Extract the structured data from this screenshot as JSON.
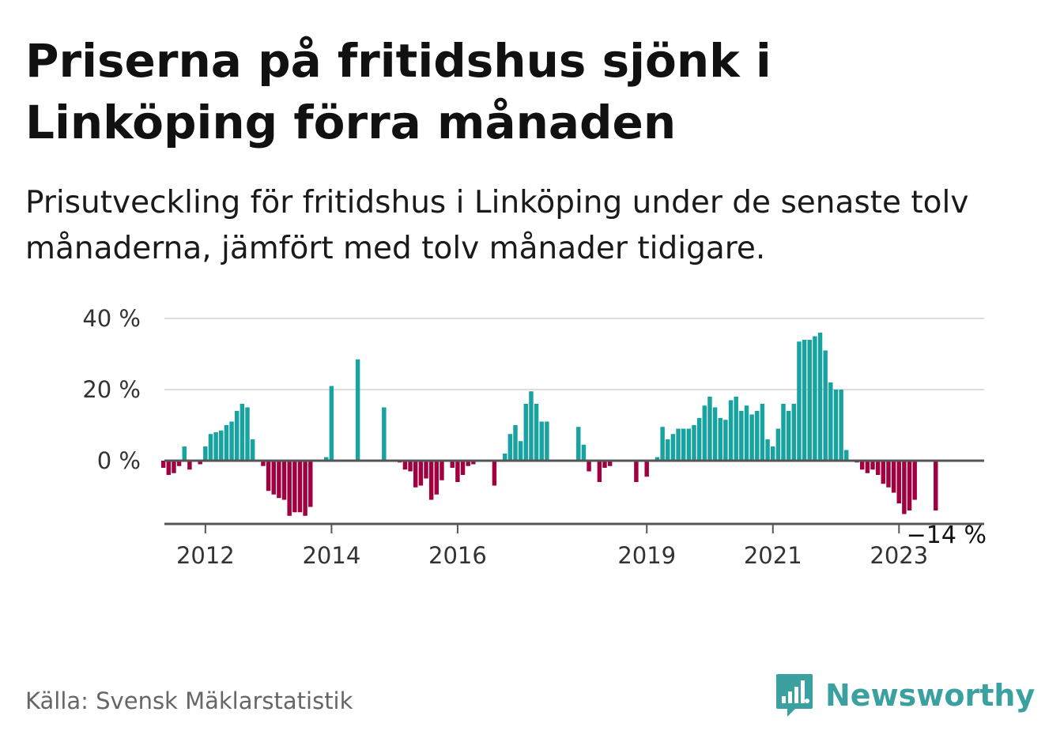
{
  "title": "Priserna på fritidshus sjönk i Linköping förra månaden",
  "subtitle": "Prisutveckling för fritidshus i Linköping under de senaste tolv månaderna, jämfört med tolv månader tidigare.",
  "source": "Källa: Svensk Mäklarstatistik",
  "brand": "Newsworthy",
  "colors": {
    "positive": "#17a3a0",
    "negative": "#a0003f",
    "brand": "#3aa0a0",
    "grid": "#dddddd",
    "axis": "#555555"
  },
  "chart_data": {
    "type": "bar",
    "y_ticks": [
      {
        "value": 40,
        "label": "40 %"
      },
      {
        "value": 20,
        "label": "20 %"
      },
      {
        "value": 0,
        "label": "0 %"
      }
    ],
    "x_ticks": [
      {
        "t": 2012,
        "label": "2012"
      },
      {
        "t": 2014,
        "label": "2014"
      },
      {
        "t": 2016,
        "label": "2016"
      },
      {
        "t": 2019,
        "label": "2019"
      },
      {
        "t": 2021,
        "label": "2021"
      },
      {
        "t": 2023,
        "label": "2023"
      }
    ],
    "ylim": [
      -18,
      40
    ],
    "xlim": [
      2011.35,
      2024.35
    ],
    "last_value_label": "−14 %",
    "grid": true,
    "start": 2011.333,
    "step": 0.08333,
    "values": [
      -2,
      -4,
      -3.5,
      -1.5,
      4,
      -2.5,
      null,
      -1,
      4,
      7.5,
      8,
      8.5,
      10,
      11,
      14,
      16,
      15,
      6,
      null,
      -1.5,
      -8.5,
      -9.5,
      -10.5,
      -11,
      -15.5,
      -14.5,
      -14.5,
      -15.5,
      -13,
      null,
      null,
      1,
      21,
      null,
      null,
      null,
      null,
      28.5,
      null,
      null,
      null,
      null,
      15,
      null,
      null,
      -0.5,
      -2.5,
      -3,
      -7.5,
      -7,
      -5,
      -11,
      -9.5,
      -5.5,
      null,
      -2,
      -6,
      -4,
      -1.5,
      -1,
      null,
      null,
      null,
      -7,
      null,
      2,
      7.5,
      10,
      5.5,
      16,
      19.5,
      16,
      11,
      11,
      null,
      null,
      null,
      null,
      null,
      9.5,
      4.5,
      -3,
      null,
      -6,
      -2,
      -1.5,
      null,
      null,
      null,
      null,
      -6,
      null,
      -4.5,
      null,
      1,
      9.5,
      6,
      7.5,
      9,
      9,
      9,
      10,
      12,
      15.5,
      18,
      15,
      12,
      11.5,
      17,
      18,
      14,
      15.5,
      13,
      14,
      16,
      6,
      4,
      9,
      16,
      14,
      16,
      33.5,
      34,
      34,
      35,
      36,
      31,
      22,
      20,
      20,
      3,
      null,
      -0.5,
      -2.5,
      -3.5,
      -2.5,
      -4,
      -6.5,
      -7.5,
      -9,
      -12,
      -15,
      -14,
      -11,
      null,
      null,
      null,
      -14
    ]
  }
}
